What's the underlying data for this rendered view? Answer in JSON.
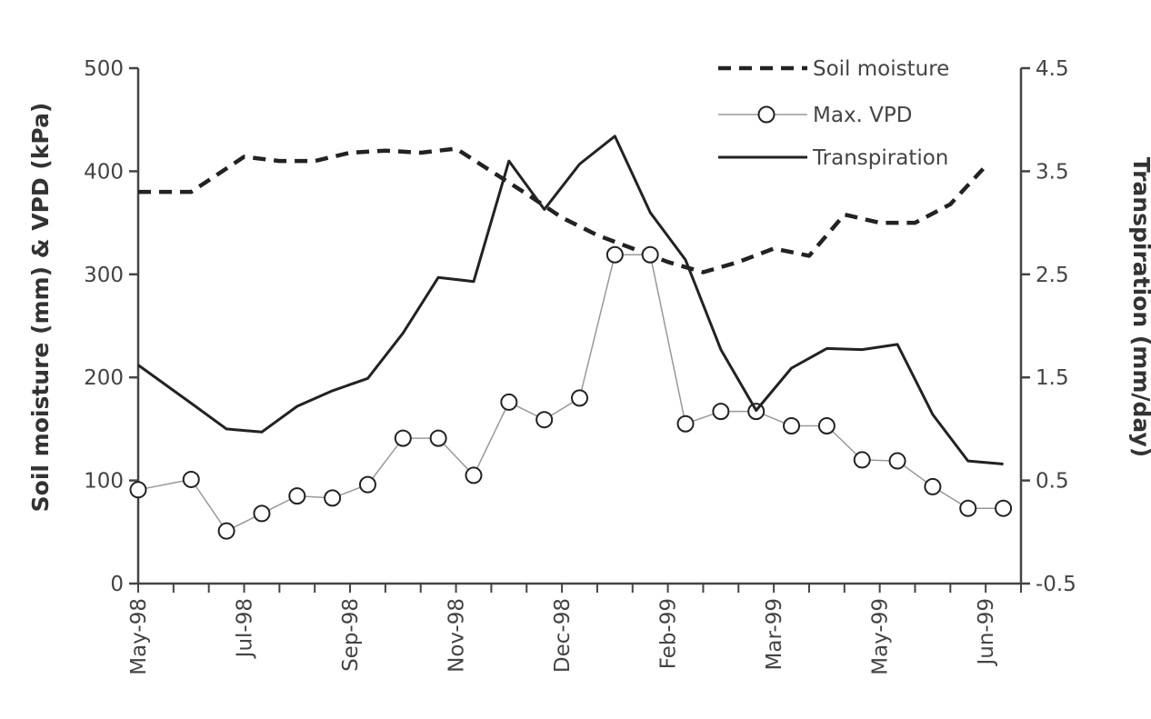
{
  "chart_data": {
    "type": "line",
    "title": "",
    "ylabel_left": "Soil moisture (mm) & VPD (kPa)",
    "ylabel_right": "Transpiration (mm/day)",
    "ylim_left": [
      0,
      500
    ],
    "ylim_right": [
      -0.5,
      4.5
    ],
    "yticks_left": [
      "0",
      "100",
      "200",
      "300",
      "400",
      "500"
    ],
    "yticks_right": [
      "-0.5",
      "0.5",
      "1.5",
      "2.5",
      "3.5",
      "4.5"
    ],
    "x_tick_labels": [
      "May-98",
      "Jul-98",
      "Sep-98",
      "Nov-98",
      "Dec-98",
      "Feb-99",
      "Mar-99",
      "May-99",
      "Jun-99"
    ],
    "x_tick_label_index": [
      0,
      6,
      12,
      18,
      24,
      30,
      36,
      42,
      48
    ],
    "grid": false,
    "legend_position": "top-right",
    "legend": [
      "Soil moisture",
      "Max. VPD",
      "Transpiration"
    ],
    "series": [
      {
        "name": "Soil moisture",
        "axis": "left",
        "style": "dashed",
        "points": [
          [
            0,
            380
          ],
          [
            3,
            380
          ],
          [
            6,
            414
          ],
          [
            8,
            410
          ],
          [
            10,
            410
          ],
          [
            12,
            418
          ],
          [
            14,
            420
          ],
          [
            16,
            418
          ],
          [
            18,
            422
          ],
          [
            20,
            400
          ],
          [
            22,
            378
          ],
          [
            24,
            355
          ],
          [
            26,
            338
          ],
          [
            28,
            325
          ],
          [
            30,
            312
          ],
          [
            32,
            302
          ],
          [
            34,
            312
          ],
          [
            36,
            325
          ],
          [
            38,
            318
          ],
          [
            40,
            358
          ],
          [
            42,
            350
          ],
          [
            44,
            350
          ],
          [
            46,
            368
          ],
          [
            48,
            405
          ]
        ]
      },
      {
        "name": "Max. VPD",
        "axis": "left",
        "style": "markers",
        "points": [
          [
            0,
            91
          ],
          [
            3,
            101
          ],
          [
            5,
            51
          ],
          [
            7,
            68
          ],
          [
            9,
            85
          ],
          [
            11,
            83
          ],
          [
            13,
            96
          ],
          [
            15,
            141
          ],
          [
            17,
            141
          ],
          [
            19,
            105
          ],
          [
            21,
            176
          ],
          [
            23,
            159
          ],
          [
            25,
            180
          ],
          [
            27,
            319
          ],
          [
            29,
            319
          ],
          [
            31,
            155
          ],
          [
            33,
            167
          ],
          [
            35,
            167
          ],
          [
            37,
            153
          ],
          [
            39,
            153
          ],
          [
            41,
            120
          ],
          [
            43,
            119
          ],
          [
            45,
            94
          ],
          [
            47,
            73
          ],
          [
            49,
            73
          ]
        ]
      },
      {
        "name": "Transpiration",
        "axis": "right",
        "style": "solid",
        "points": [
          [
            0,
            1.62
          ],
          [
            3,
            1.25
          ],
          [
            5,
            1.0
          ],
          [
            7,
            0.97
          ],
          [
            9,
            1.22
          ],
          [
            11,
            1.37
          ],
          [
            13,
            1.49
          ],
          [
            15,
            1.93
          ],
          [
            17,
            2.47
          ],
          [
            19,
            2.43
          ],
          [
            21,
            3.6
          ],
          [
            23,
            3.13
          ],
          [
            25,
            3.57
          ],
          [
            27,
            3.84
          ],
          [
            29,
            3.1
          ],
          [
            31,
            2.64
          ],
          [
            33,
            1.77
          ],
          [
            35,
            1.18
          ],
          [
            37,
            1.59
          ],
          [
            39,
            1.78
          ],
          [
            41,
            1.77
          ],
          [
            43,
            1.82
          ],
          [
            45,
            1.14
          ],
          [
            47,
            0.69
          ],
          [
            49,
            0.66
          ]
        ]
      }
    ]
  },
  "colors": {
    "axis": "#444444",
    "series_dark": "#222222",
    "vpd_line": "#999999",
    "marker_fill": "#ffffff",
    "background": "#ffffff"
  }
}
